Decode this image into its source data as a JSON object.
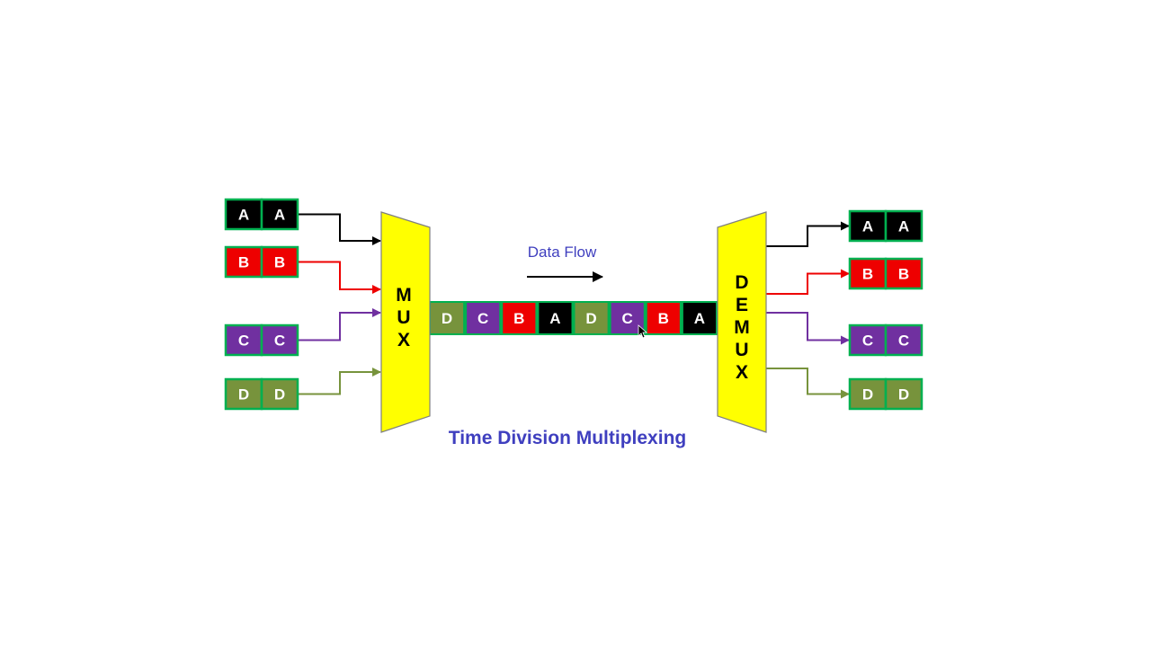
{
  "diagram": {
    "title": "Time Division Multiplexing",
    "flow_label": "Data Flow",
    "mux_label": [
      "M",
      "U",
      "X"
    ],
    "demux_label": [
      "D",
      "E",
      "M",
      "U",
      "X"
    ]
  },
  "colors": {
    "A": "#000000",
    "B": "#ee0000",
    "C": "#7030a0",
    "D": "#77933c",
    "cell_border": "#00b050",
    "block_fill": "#ffff00",
    "title": "#3f3fbf",
    "flow_label": "#3f3fbf"
  },
  "inputs": [
    {
      "channel": "A",
      "cells": [
        "A",
        "A"
      ]
    },
    {
      "channel": "B",
      "cells": [
        "B",
        "B"
      ]
    },
    {
      "channel": "C",
      "cells": [
        "C",
        "C"
      ]
    },
    {
      "channel": "D",
      "cells": [
        "D",
        "D"
      ]
    }
  ],
  "link_frames": [
    "D",
    "C",
    "B",
    "A",
    "D",
    "C",
    "B",
    "A"
  ],
  "outputs": [
    {
      "channel": "A",
      "cells": [
        "A",
        "A"
      ]
    },
    {
      "channel": "B",
      "cells": [
        "B",
        "B"
      ]
    },
    {
      "channel": "C",
      "cells": [
        "C",
        "C"
      ]
    },
    {
      "channel": "D",
      "cells": [
        "D",
        "D"
      ]
    }
  ]
}
